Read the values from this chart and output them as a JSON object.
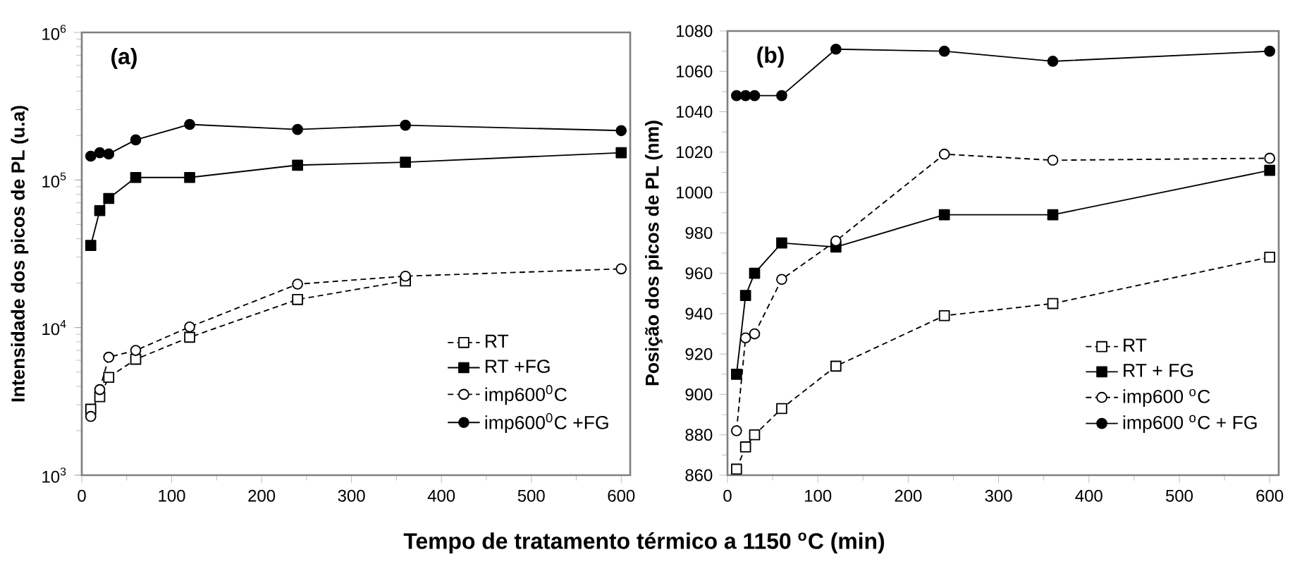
{
  "chart_data": [
    {
      "type": "line",
      "xlabel": "Tempo de tratamento térmico a 1150 $^{o}$C (min)",
      "ylabel": "Intensidade dos picos de PL (u.a)",
      "annotations": [
        "(a)"
      ],
      "log": true,
      "legend": "bottom right",
      "xlim": [
        0,
        610
      ],
      "xticks": [
        0,
        100,
        200,
        300,
        400,
        500,
        600
      ],
      "ylim": [
        1000,
        1000000
      ],
      "yticks": [
        {
          "value": 1000,
          "label": "10$^{3}$"
        },
        {
          "value": 10000,
          "label": "10$^{4}$"
        },
        {
          "value": 100000,
          "label": "10$^{5}$"
        },
        {
          "value": 1000000,
          "label": "10$^{6}$"
        }
      ],
      "x": [
        10,
        20,
        30,
        60,
        120,
        240,
        360,
        600
      ],
      "series": [
        {
          "name": "RT",
          "color": "#000000",
          "marker": "square",
          "line_style": "dashed",
          "values": [
            2800,
            3400,
            4600,
            6100,
            8600,
            15500,
            20700,
            null
          ]
        },
        {
          "name": "RT +FG",
          "color": "#000000",
          "marker": "square",
          "line_style": "solid",
          "values": [
            36000,
            62000,
            75000,
            104000,
            104000,
            126000,
            132000,
            153000
          ]
        },
        {
          "name": "imp600$^{0}$C",
          "color": "#000000",
          "marker": "circle",
          "line_style": "dashed",
          "values": [
            2500,
            3800,
            6300,
            7000,
            10100,
            19700,
            22300,
            25000
          ]
        },
        {
          "name": "imp600$^{0}$C +FG",
          "color": "#000000",
          "marker": "circle",
          "line_style": "solid",
          "values": [
            145000,
            153000,
            150000,
            187000,
            238000,
            220000,
            235000,
            216000
          ]
        }
      ]
    },
    {
      "type": "line",
      "ylabel": "Posição dos picos de PL (nm)",
      "annotations": [
        "(b)"
      ],
      "legend": "bottom right",
      "xlim": [
        0,
        610
      ],
      "xticks": [
        0,
        100,
        200,
        300,
        400,
        500,
        600
      ],
      "ylim": [
        860,
        1080
      ],
      "yticks": [
        860,
        880,
        900,
        920,
        940,
        960,
        980,
        1000,
        1020,
        1040,
        1060,
        1080
      ],
      "x": [
        10,
        20,
        30,
        60,
        120,
        240,
        360,
        600
      ],
      "series": [
        {
          "name": "RT",
          "color": "#000000",
          "marker": "square",
          "line_style": "dashed",
          "values": [
            863,
            874,
            880,
            893,
            914,
            939,
            945,
            968
          ]
        },
        {
          "name": "RT + FG",
          "color": "#000000",
          "marker": "square",
          "line_style": "solid",
          "values": [
            910,
            949,
            960,
            975,
            973,
            989,
            989,
            1011
          ]
        },
        {
          "name": "imp600 $^{o}$C",
          "color": "#000000",
          "marker": "circle",
          "line_style": "dashed",
          "values": [
            882,
            928,
            930,
            957,
            976,
            1019,
            1016,
            1017
          ]
        },
        {
          "name": "imp600 $^{o}$C + FG",
          "color": "#000000",
          "marker": "circle",
          "line_style": "solid",
          "values": [
            1048,
            1048,
            1048,
            1048,
            1071,
            1070,
            1065,
            1070
          ]
        }
      ]
    }
  ]
}
